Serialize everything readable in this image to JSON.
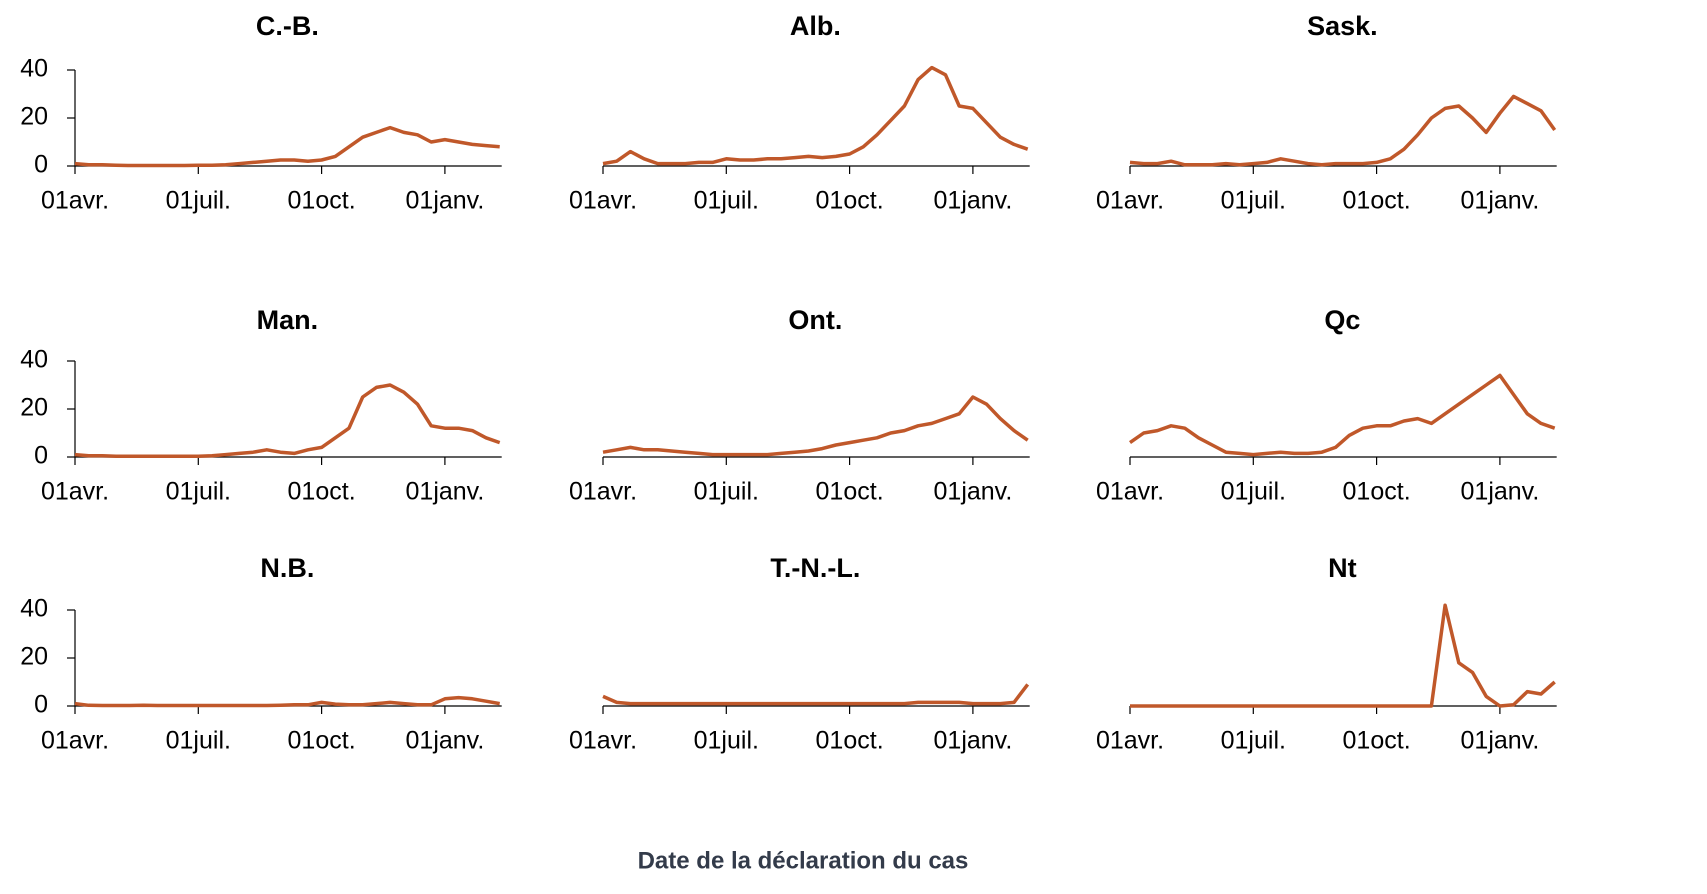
{
  "xlabel": "Date de la déclaration du cas",
  "chart_data": [
    {
      "type": "line",
      "title": "C.-B.",
      "color": "#c0582a",
      "categories": [
        "01avr.",
        null,
        null,
        null,
        null,
        null,
        null,
        null,
        null,
        "01juil.",
        null,
        null,
        null,
        null,
        null,
        null,
        null,
        null,
        "01oct.",
        null,
        null,
        null,
        null,
        null,
        null,
        null,
        null,
        "01janv.",
        null,
        null,
        null,
        null
      ],
      "values": [
        1,
        0.5,
        0.5,
        0.3,
        0.2,
        0.2,
        0.2,
        0.2,
        0.2,
        0.3,
        0.3,
        0.5,
        1,
        1.5,
        2,
        2.5,
        2.5,
        2,
        2.5,
        4,
        8,
        12,
        14,
        16,
        14,
        13,
        10,
        11,
        10,
        9,
        8.5,
        8
      ],
      "ylim": [
        0,
        40
      ],
      "yticks": [
        0,
        20,
        40
      ]
    },
    {
      "type": "line",
      "title": "Alb.",
      "color": "#c0582a",
      "categories": [
        "01avr.",
        null,
        null,
        null,
        null,
        null,
        null,
        null,
        null,
        "01juil.",
        null,
        null,
        null,
        null,
        null,
        null,
        null,
        null,
        "01oct.",
        null,
        null,
        null,
        null,
        null,
        null,
        null,
        null,
        "01janv.",
        null,
        null,
        null,
        null
      ],
      "values": [
        1,
        2,
        6,
        3,
        1,
        1,
        1,
        1.5,
        1.5,
        3,
        2.5,
        2.5,
        3,
        3,
        3.5,
        4,
        3.5,
        4,
        5,
        8,
        13,
        19,
        25,
        36,
        41,
        38,
        25,
        24,
        18,
        12,
        9,
        7
      ],
      "ylim": [
        0,
        40
      ]
    },
    {
      "type": "line",
      "title": "Sask.",
      "color": "#c0582a",
      "categories": [
        "01avr.",
        null,
        null,
        null,
        null,
        null,
        null,
        null,
        null,
        "01juil.",
        null,
        null,
        null,
        null,
        null,
        null,
        null,
        null,
        "01oct.",
        null,
        null,
        null,
        null,
        null,
        null,
        null,
        null,
        "01janv.",
        null,
        null,
        null,
        null
      ],
      "values": [
        1.5,
        1,
        1,
        2,
        0.5,
        0.5,
        0.5,
        1,
        0.5,
        1,
        1.5,
        3,
        2,
        1,
        0.5,
        1,
        1,
        1,
        1.5,
        3,
        7,
        13,
        20,
        24,
        25,
        20,
        14,
        22,
        29,
        26,
        23,
        15
      ],
      "ylim": [
        0,
        40
      ]
    },
    {
      "type": "line",
      "title": "Man.",
      "color": "#c0582a",
      "categories": [
        "01avr.",
        null,
        null,
        null,
        null,
        null,
        null,
        null,
        null,
        "01juil.",
        null,
        null,
        null,
        null,
        null,
        null,
        null,
        null,
        "01oct.",
        null,
        null,
        null,
        null,
        null,
        null,
        null,
        null,
        "01janv.",
        null,
        null,
        null,
        null
      ],
      "values": [
        1,
        0.5,
        0.5,
        0.3,
        0.3,
        0.3,
        0.3,
        0.3,
        0.3,
        0.3,
        0.5,
        1,
        1.5,
        2,
        3,
        2,
        1.5,
        3,
        4,
        8,
        12,
        25,
        29,
        30,
        27,
        22,
        13,
        12,
        12,
        11,
        8,
        6
      ],
      "ylim": [
        0,
        40
      ],
      "yticks": [
        0,
        20,
        40
      ]
    },
    {
      "type": "line",
      "title": "Ont.",
      "color": "#c0582a",
      "categories": [
        "01avr.",
        null,
        null,
        null,
        null,
        null,
        null,
        null,
        null,
        "01juil.",
        null,
        null,
        null,
        null,
        null,
        null,
        null,
        null,
        "01oct.",
        null,
        null,
        null,
        null,
        null,
        null,
        null,
        null,
        "01janv.",
        null,
        null,
        null,
        null
      ],
      "values": [
        2,
        3,
        4,
        3,
        3,
        2.5,
        2,
        1.5,
        1,
        1,
        1,
        1,
        1,
        1.5,
        2,
        2.5,
        3.5,
        5,
        6,
        7,
        8,
        10,
        11,
        13,
        14,
        16,
        18,
        25,
        22,
        16,
        11,
        7
      ],
      "ylim": [
        0,
        40
      ]
    },
    {
      "type": "line",
      "title": "Qc",
      "color": "#c0582a",
      "categories": [
        "01avr.",
        null,
        null,
        null,
        null,
        null,
        null,
        null,
        null,
        "01juil.",
        null,
        null,
        null,
        null,
        null,
        null,
        null,
        null,
        "01oct.",
        null,
        null,
        null,
        null,
        null,
        null,
        null,
        null,
        "01janv.",
        null,
        null,
        null,
        null
      ],
      "values": [
        6,
        10,
        11,
        13,
        12,
        8,
        5,
        2,
        1.5,
        1,
        1.5,
        2,
        1.5,
        1.5,
        2,
        4,
        9,
        12,
        13,
        13,
        15,
        16,
        14,
        18,
        22,
        26,
        30,
        34,
        26,
        18,
        14,
        12
      ],
      "ylim": [
        0,
        40
      ]
    },
    {
      "type": "line",
      "title": "N.B.",
      "color": "#c0582a",
      "categories": [
        "01avr.",
        null,
        null,
        null,
        null,
        null,
        null,
        null,
        null,
        "01juil.",
        null,
        null,
        null,
        null,
        null,
        null,
        null,
        null,
        "01oct.",
        null,
        null,
        null,
        null,
        null,
        null,
        null,
        null,
        "01janv.",
        null,
        null,
        null,
        null
      ],
      "values": [
        1,
        0.3,
        0.2,
        0.2,
        0.2,
        0.3,
        0.2,
        0.2,
        0.2,
        0.2,
        0.2,
        0.2,
        0.2,
        0.2,
        0.2,
        0.3,
        0.5,
        0.5,
        1.5,
        0.8,
        0.5,
        0.5,
        1,
        1.5,
        1,
        0.5,
        0.5,
        3,
        3.5,
        3,
        2,
        1
      ],
      "ylim": [
        0,
        40
      ],
      "yticks": [
        0,
        20,
        40
      ]
    },
    {
      "type": "line",
      "title": "T.-N.-L.",
      "color": "#c0582a",
      "categories": [
        "01avr.",
        null,
        null,
        null,
        null,
        null,
        null,
        null,
        null,
        "01juil.",
        null,
        null,
        null,
        null,
        null,
        null,
        null,
        null,
        "01oct.",
        null,
        null,
        null,
        null,
        null,
        null,
        null,
        null,
        "01janv.",
        null,
        null,
        null,
        null
      ],
      "values": [
        4,
        1.5,
        1,
        1,
        1,
        1,
        1,
        1,
        1,
        1,
        1,
        1,
        1,
        1,
        1,
        1,
        1,
        1,
        1,
        1,
        1,
        1,
        1,
        1.5,
        1.5,
        1.5,
        1.5,
        1,
        1,
        1,
        1.5,
        9
      ],
      "ylim": [
        0,
        40
      ]
    },
    {
      "type": "line",
      "title": "Nt",
      "color": "#c0582a",
      "categories": [
        "01avr.",
        null,
        null,
        null,
        null,
        null,
        null,
        null,
        null,
        "01juil.",
        null,
        null,
        null,
        null,
        null,
        null,
        null,
        null,
        "01oct.",
        null,
        null,
        null,
        null,
        null,
        null,
        null,
        null,
        "01janv.",
        null,
        null,
        null,
        null
      ],
      "values": [
        0,
        0,
        0,
        0,
        0,
        0,
        0,
        0,
        0,
        0,
        0,
        0,
        0,
        0,
        0,
        0,
        0,
        0,
        0,
        0,
        0,
        0,
        0,
        42,
        18,
        14,
        4,
        0,
        0.5,
        6,
        5,
        10
      ],
      "ylim": [
        0,
        40
      ]
    }
  ]
}
